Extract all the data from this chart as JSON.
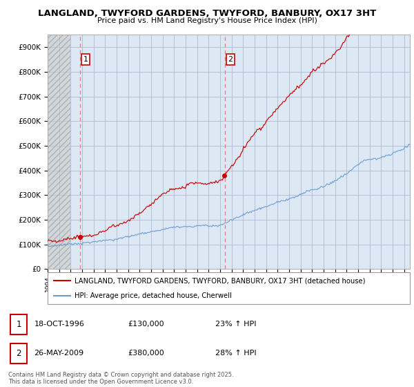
{
  "title": "LANGLAND, TWYFORD GARDENS, TWYFORD, BANBURY, OX17 3HT",
  "subtitle": "Price paid vs. HM Land Registry's House Price Index (HPI)",
  "legend_line1": "LANGLAND, TWYFORD GARDENS, TWYFORD, BANBURY, OX17 3HT (detached house)",
  "legend_line2": "HPI: Average price, detached house, Cherwell",
  "footnote": "Contains HM Land Registry data © Crown copyright and database right 2025.\nThis data is licensed under the Open Government Licence v3.0.",
  "transaction1_date": "18-OCT-1996",
  "transaction1_price": "£130,000",
  "transaction1_hpi": "23% ↑ HPI",
  "transaction2_date": "26-MAY-2009",
  "transaction2_price": "£380,000",
  "transaction2_hpi": "28% ↑ HPI",
  "vline1_x": 1996.79,
  "vline2_x": 2009.39,
  "price_line_color": "#cc0000",
  "hpi_line_color": "#6699cc",
  "vline_color": "#dd8888",
  "plot_bg_color": "#dce9f5",
  "background_color": "#ffffff",
  "grid_color": "#aaaacc",
  "ylim_min": 0,
  "ylim_max": 950000,
  "xmin": 1994.0,
  "xmax": 2025.5,
  "yticks": [
    0,
    100000,
    200000,
    300000,
    400000,
    500000,
    600000,
    700000,
    800000,
    900000
  ],
  "ytick_labels": [
    "£0",
    "£100K",
    "£200K",
    "£300K",
    "£400K",
    "£500K",
    "£600K",
    "£700K",
    "£800K",
    "£900K"
  ]
}
